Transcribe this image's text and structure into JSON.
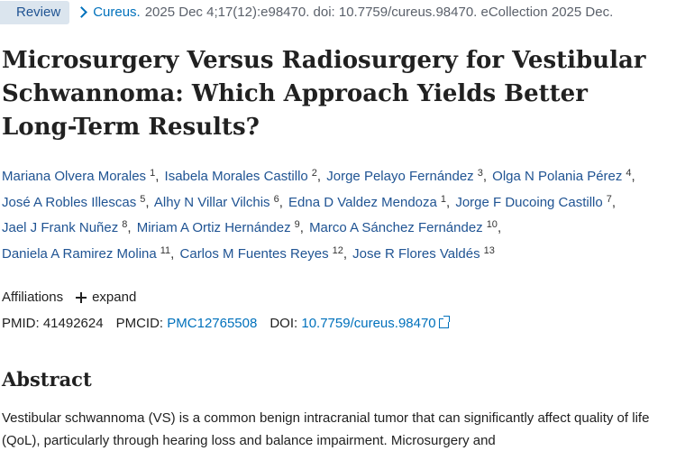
{
  "badge": "Review",
  "citation": {
    "journal": "Cureus.",
    "details": "2025 Dec 4;17(12):e98470. doi: 10.7759/cureus.98470. eCollection 2025 Dec."
  },
  "title": "Microsurgery Versus Radiosurgery for Vestibular Schwannoma: Which Approach Yields Better Long-Term Results?",
  "authors": [
    {
      "name": "Mariana Olvera Morales",
      "aff": "1"
    },
    {
      "name": "Isabela Morales Castillo",
      "aff": "2"
    },
    {
      "name": "Jorge Pelayo Fernández",
      "aff": "3"
    },
    {
      "name": "Olga N Polania Pérez",
      "aff": "4"
    },
    {
      "name": "José A Robles Illescas",
      "aff": "5"
    },
    {
      "name": "Alhy N Villar Vilchis",
      "aff": "6"
    },
    {
      "name": "Edna D Valdez Mendoza",
      "aff": "1"
    },
    {
      "name": "Jorge F Ducoing Castillo",
      "aff": "7"
    },
    {
      "name": "Jael J Frank Nuñez",
      "aff": "8"
    },
    {
      "name": "Miriam A Ortiz Hernández",
      "aff": "9"
    },
    {
      "name": "Marco A Sánchez Fernández",
      "aff": "10"
    },
    {
      "name": "Daniela A Ramirez Molina",
      "aff": "11"
    },
    {
      "name": "Carlos M Fuentes Reyes",
      "aff": "12"
    },
    {
      "name": "Jose R Flores Valdés",
      "aff": "13"
    }
  ],
  "affiliations": {
    "label": "Affiliations",
    "expand": "expand"
  },
  "ids": {
    "pmid_label": "PMID:",
    "pmid": "41492624",
    "pmcid_label": "PMCID:",
    "pmcid": "PMC12765508",
    "doi_label": "DOI:",
    "doi": "10.7759/cureus.98470"
  },
  "abstract": {
    "heading": "Abstract",
    "text": "Vestibular schwannoma (VS) is a common benign intracranial tumor that can significantly affect quality of life (QoL), particularly through hearing loss and balance impairment. Microsurgery and"
  },
  "colors": {
    "link": "#0071bc",
    "author": "#205493",
    "badge_bg": "#dbe5ee"
  }
}
